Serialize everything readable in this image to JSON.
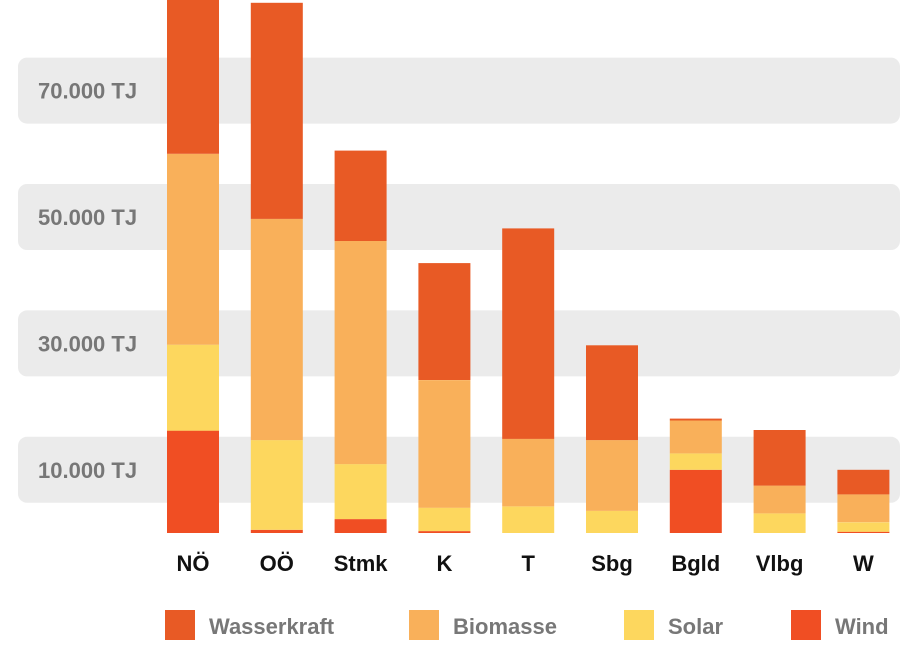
{
  "colors": {
    "Wasserkraft": "#e85a25",
    "Biomasse": "#f9b05a",
    "Solar": "#fdd75e",
    "Wind": "#f04e23",
    "band": "#ebebeb"
  },
  "chart_data": {
    "type": "bar",
    "stacked": true,
    "title": "",
    "xlabel": "",
    "ylabel": "",
    "y_ticks": [
      "10.000 TJ",
      "30.000 TJ",
      "50.000 TJ",
      "70.000 TJ"
    ],
    "y_tick_values": [
      10000,
      30000,
      50000,
      70000
    ],
    "ylim": [
      0,
      85000
    ],
    "legend_position": "bottom",
    "categories": [
      "NÖ",
      "OÖ",
      "Stmk",
      "K",
      "T",
      "Sbg",
      "Bgld",
      "Vlbg",
      "W"
    ],
    "series": [
      {
        "name": "Wind",
        "values": [
          16200,
          500,
          2200,
          300,
          0,
          0,
          10000,
          0,
          200
        ]
      },
      {
        "name": "Solar",
        "values": [
          13600,
          14200,
          8700,
          3700,
          4200,
          3500,
          2600,
          3100,
          1500
        ]
      },
      {
        "name": "Biomasse",
        "values": [
          30200,
          35000,
          35300,
          20200,
          10700,
          11200,
          5200,
          4400,
          4400
        ]
      },
      {
        "name": "Wasserkraft",
        "values": [
          25200,
          34200,
          14300,
          18500,
          33300,
          15000,
          300,
          8800,
          3900
        ]
      }
    ],
    "legend": [
      "Wasserkraft",
      "Biomasse",
      "Solar",
      "Wind"
    ]
  }
}
